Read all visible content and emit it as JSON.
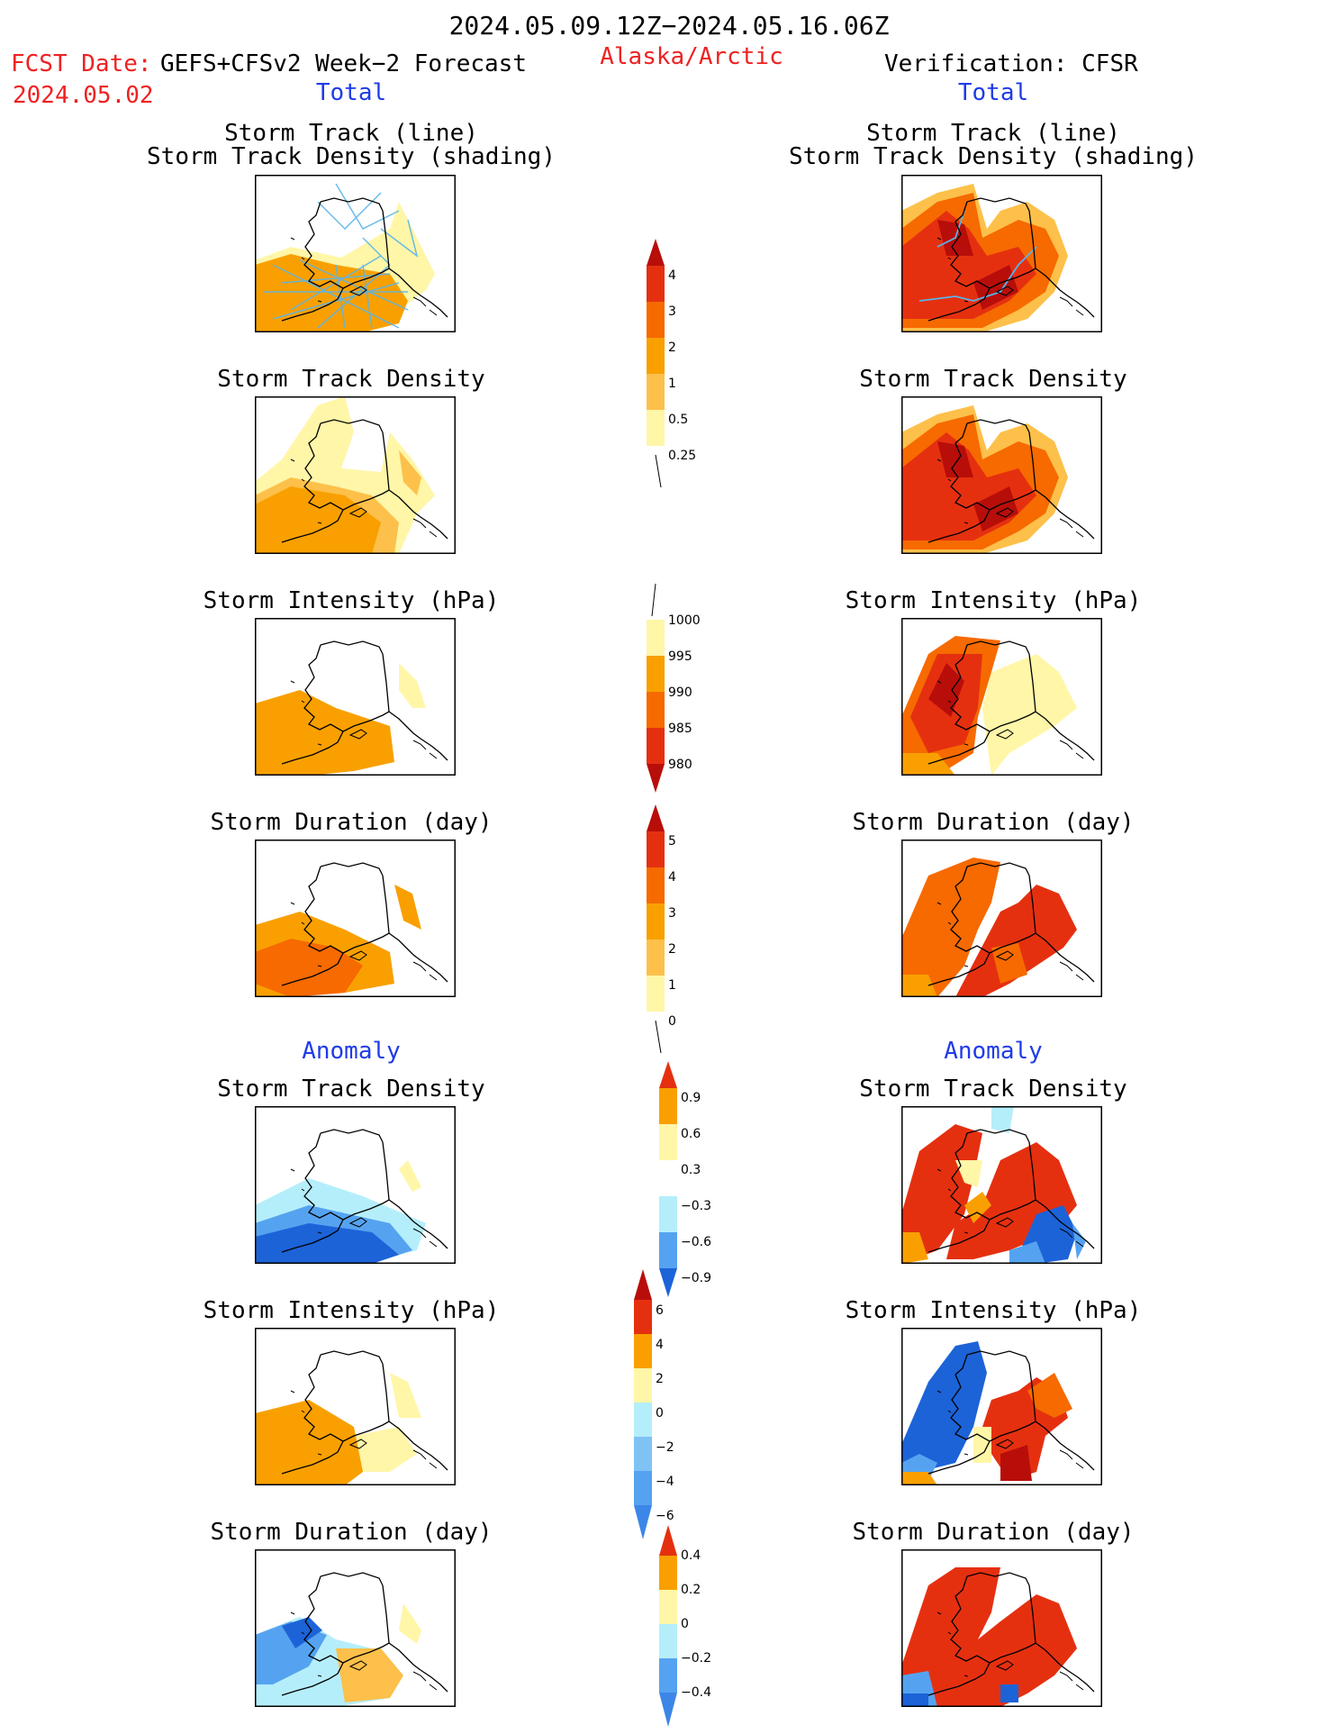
{
  "header": {
    "period": "2024.05.09.12Z−2024.05.16.06Z",
    "fcst_label": "FCST Date:",
    "fcst_model": "GEFS+CFSv2 Week−2 Forecast",
    "fcst_date": "2024.05.02",
    "region": "Alaska/Arctic",
    "verification": "Verification: CFSR",
    "total_left": "Total",
    "total_right": "Total",
    "anomaly_left": "Anomaly",
    "anomaly_right": "Anomaly"
  },
  "panels": {
    "track_line1": "Storm Track (line)",
    "track_line2": "Storm Track Density (shading)",
    "density": "Storm Track Density",
    "intensity": "Storm Intensity (hPa)",
    "duration": "Storm Duration (day)"
  },
  "colorbars": {
    "density_total": [
      "4",
      "3",
      "2",
      "1",
      "0.5",
      "0.25"
    ],
    "intensity_total": [
      "1000",
      "995",
      "990",
      "985",
      "980"
    ],
    "duration_total": [
      "5",
      "4",
      "3",
      "2",
      "1",
      "0"
    ],
    "density_anom": [
      "0.9",
      "0.6",
      "0.3",
      "−0.3",
      "−0.6",
      "−0.9"
    ],
    "intensity_anom": [
      "6",
      "4",
      "2",
      "0",
      "−2",
      "−4",
      "−6"
    ],
    "duration_anom": [
      "0.4",
      "0.2",
      "0",
      "−0.2",
      "−0.4"
    ]
  },
  "colors": {
    "pale_yellow": "#fff6a8",
    "light_orange": "#fdc04a",
    "orange": "#f9a000",
    "dark_orange": "#f66a00",
    "red": "#e53010",
    "dark_red": "#b80e0a",
    "light_blue": "#b5eefb",
    "mid_blue": "#55a3f0",
    "blue": "#1c63d8",
    "track_line": "#5ab4e8"
  },
  "icons": [
    "alaska-coastline-icon"
  ]
}
